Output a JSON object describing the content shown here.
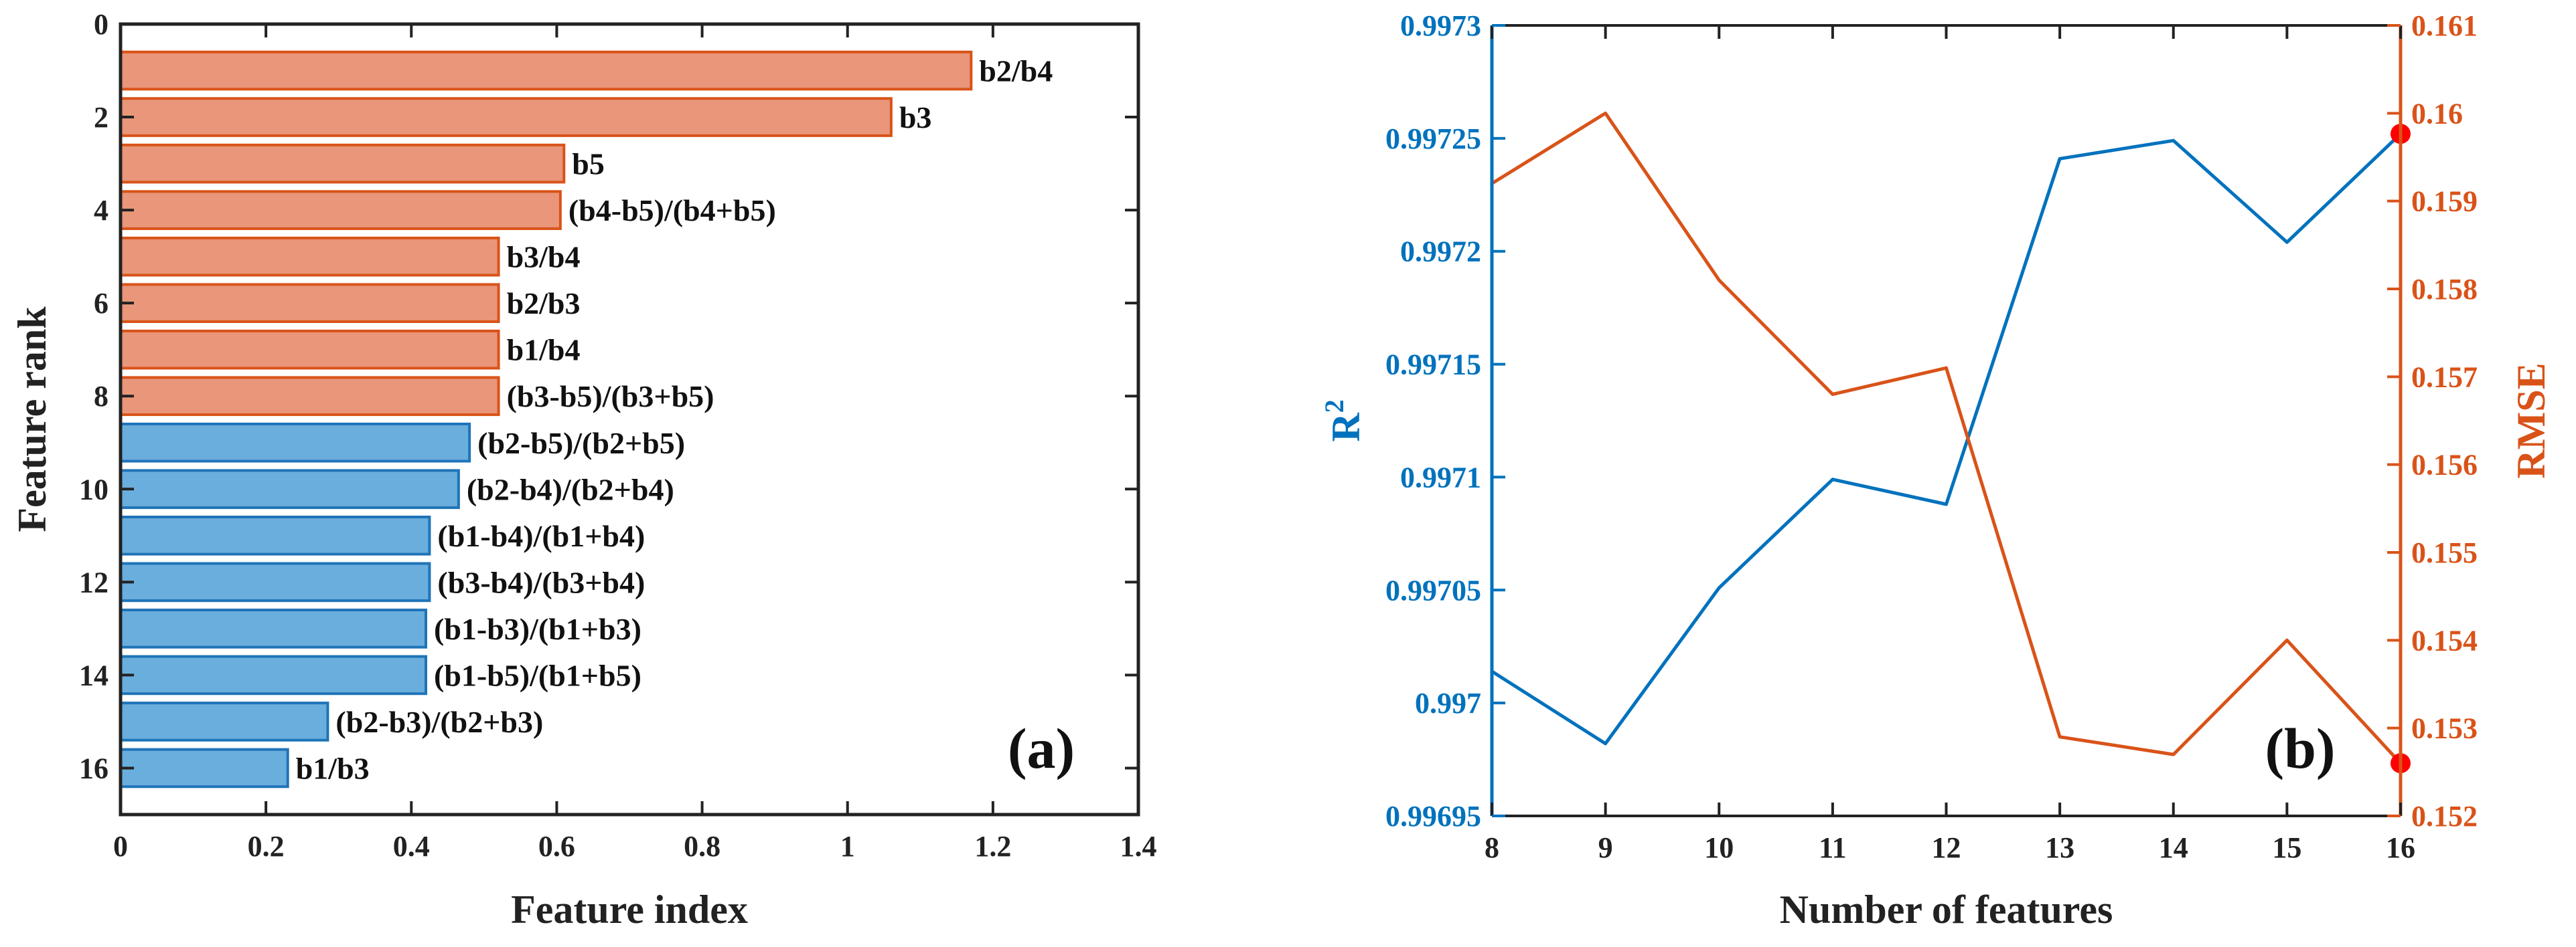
{
  "chart_data": [
    {
      "type": "bar",
      "orientation": "horizontal",
      "panel_label": "(a)",
      "xlabel": "Feature index",
      "ylabel": "Feature rank",
      "xlim": [
        0,
        1.4
      ],
      "ylim": [
        17,
        0
      ],
      "xticks": [
        "0",
        "0.2",
        "0.4",
        "0.6",
        "0.8",
        "1",
        "1.2",
        "1.4"
      ],
      "yticks": [
        "0",
        "2",
        "4",
        "6",
        "8",
        "10",
        "12",
        "14",
        "16"
      ],
      "colors": {
        "selected": "#E9967A",
        "selected_edge": "#D95319",
        "other": "#6AAEDD",
        "other_edge": "#1F74B8"
      },
      "bars": [
        {
          "rank": 1,
          "label": "b2/b4",
          "value": 1.17,
          "group": "selected"
        },
        {
          "rank": 2,
          "label": "b3",
          "value": 1.06,
          "group": "selected"
        },
        {
          "rank": 3,
          "label": "b5",
          "value": 0.61,
          "group": "selected"
        },
        {
          "rank": 4,
          "label": "(b4-b5)/(b4+b5)",
          "value": 0.605,
          "group": "selected"
        },
        {
          "rank": 5,
          "label": "b3/b4",
          "value": 0.52,
          "group": "selected"
        },
        {
          "rank": 6,
          "label": "b2/b3",
          "value": 0.52,
          "group": "selected"
        },
        {
          "rank": 7,
          "label": "b1/b4",
          "value": 0.52,
          "group": "selected"
        },
        {
          "rank": 8,
          "label": "(b3-b5)/(b3+b5)",
          "value": 0.52,
          "group": "selected"
        },
        {
          "rank": 9,
          "label": "(b2-b5)/(b2+b5)",
          "value": 0.48,
          "group": "other"
        },
        {
          "rank": 10,
          "label": "(b2-b4)/(b2+b4)",
          "value": 0.465,
          "group": "other"
        },
        {
          "rank": 11,
          "label": "(b1-b4)/(b1+b4)",
          "value": 0.425,
          "group": "other"
        },
        {
          "rank": 12,
          "label": "(b3-b4)/(b3+b4)",
          "value": 0.425,
          "group": "other"
        },
        {
          "rank": 13,
          "label": "(b1-b3)/(b1+b3)",
          "value": 0.42,
          "group": "other"
        },
        {
          "rank": 14,
          "label": "(b1-b5)/(b1+b5)",
          "value": 0.42,
          "group": "other"
        },
        {
          "rank": 15,
          "label": "(b2-b3)/(b2+b3)",
          "value": 0.285,
          "group": "other"
        },
        {
          "rank": 16,
          "label": "b1/b3",
          "value": 0.23,
          "group": "other"
        }
      ]
    },
    {
      "type": "line",
      "panel_label": "(b)",
      "xlabel": "Number of features",
      "x": [
        8,
        9,
        10,
        11,
        12,
        13,
        14,
        15,
        16
      ],
      "xlim": [
        8,
        16
      ],
      "xticks": [
        "8",
        "9",
        "10",
        "11",
        "12",
        "13",
        "14",
        "15",
        "16"
      ],
      "left_axis": {
        "label_base": "R",
        "label_sup": "2",
        "color": "#0072BD",
        "ylim": [
          0.99695,
          0.9973
        ],
        "ticks": [
          "0.99695",
          "0.997",
          "0.99705",
          "0.9971",
          "0.99715",
          "0.9972",
          "0.99725",
          "0.9973"
        ]
      },
      "right_axis": {
        "label": "RMSE",
        "color": "#D95319",
        "ylim": [
          0.152,
          0.161
        ],
        "ticks": [
          "0.152",
          "0.153",
          "0.154",
          "0.155",
          "0.156",
          "0.157",
          "0.158",
          "0.159",
          "0.16",
          "0.161"
        ]
      },
      "series": [
        {
          "name": "R2",
          "axis": "left",
          "color": "#0072BD",
          "values": [
            0.997014,
            0.996982,
            0.997051,
            0.997099,
            0.997088,
            0.997241,
            0.997249,
            0.997204,
            0.997252
          ]
        },
        {
          "name": "RMSE",
          "axis": "right",
          "color": "#D95319",
          "values": [
            0.1592,
            0.16,
            0.1581,
            0.1568,
            0.1571,
            0.1529,
            0.1527,
            0.154,
            0.1526
          ]
        }
      ],
      "highlight": {
        "x": 16,
        "color": "#FF0000"
      }
    }
  ]
}
